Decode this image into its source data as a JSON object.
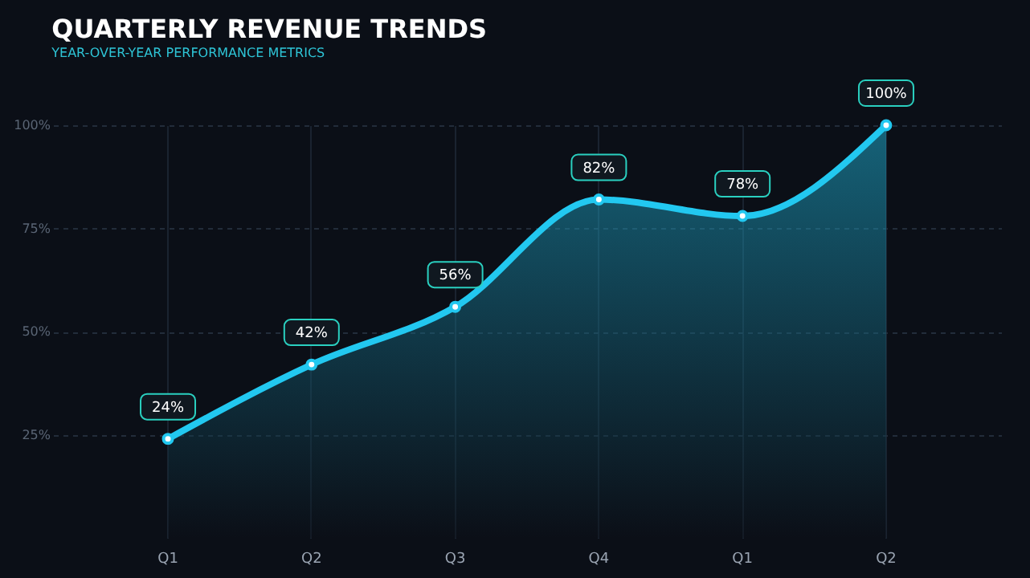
{
  "chart_data": {
    "type": "area",
    "title": "QUARTERLY REVENUE TRENDS",
    "subtitle": "YEAR-OVER-YEAR PERFORMANCE METRICS",
    "categories": [
      "Q1",
      "Q2",
      "Q3",
      "Q4",
      "Q1",
      "Q2"
    ],
    "series": [
      {
        "color": "#22c8f0",
        "values": [
          24,
          42,
          56,
          82,
          78,
          100
        ],
        "value_labels": [
          "24%",
          "42%",
          "56%",
          "82%",
          "78%",
          "100%"
        ]
      }
    ],
    "ylim": [
      0,
      100
    ],
    "yticks": [
      {
        "value": 25,
        "label": "25%"
      },
      {
        "value": 50,
        "label": "50%"
      },
      {
        "value": 75,
        "label": "75%"
      },
      {
        "value": 100,
        "label": "100%"
      }
    ],
    "grid": true,
    "marker": "circle",
    "line_style": "solid"
  }
}
